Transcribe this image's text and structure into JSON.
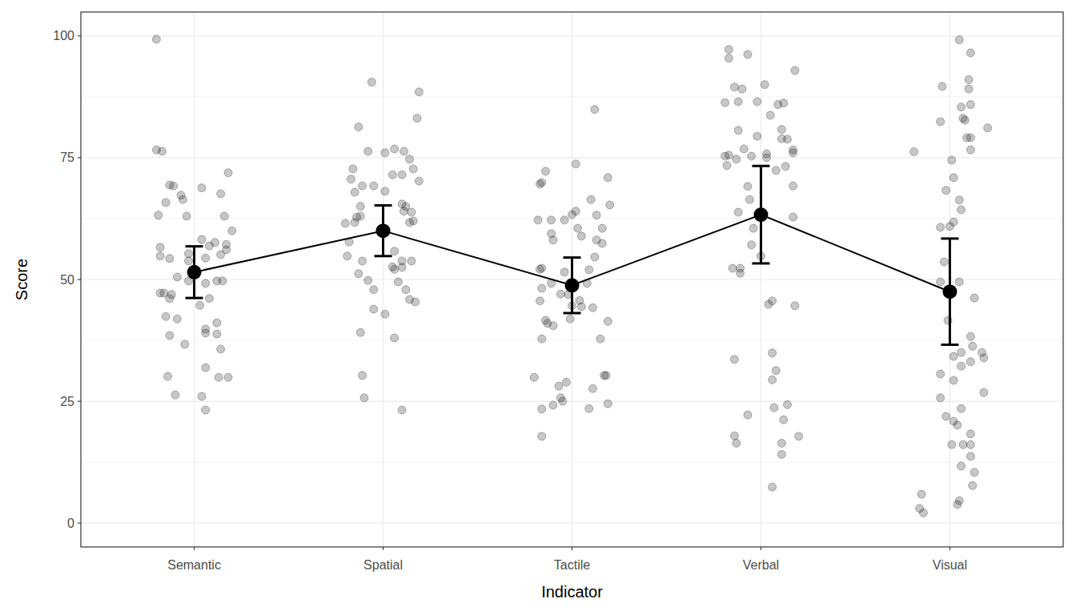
{
  "chart_data": {
    "type": "scatter",
    "x_label": "Indicator",
    "y_label": "Score",
    "categories": [
      "Semantic",
      "Spatial",
      "Tactile",
      "Verbal",
      "Visual"
    ],
    "xlim": [
      0.4,
      5.6
    ],
    "ylim": [
      -4.9,
      104.9
    ],
    "yticks": [
      0,
      25,
      50,
      75,
      100
    ],
    "grid": true,
    "points": [
      {
        "x": [
          0.8,
          0.8,
          0.83,
          0.87,
          0.89,
          0.85,
          0.93,
          0.94,
          1.04,
          0.81,
          0.96,
          1.18,
          1.14,
          1.16,
          0.82,
          0.82,
          0.87,
          0.97,
          0.97,
          1.04,
          1.08,
          1.11,
          1.17,
          1.17,
          1.2,
          1.14,
          1.06,
          0.82,
          0.84,
          0.88,
          0.87,
          0.91,
          0.97,
          1.06,
          1.12,
          1.15,
          1.08,
          1.03,
          0.85,
          0.91,
          1.12,
          0.87,
          0.95,
          1.06,
          1.06,
          1.12,
          1.14,
          1.06,
          0.86,
          1.13,
          1.18,
          0.9,
          1.04,
          1.06
        ],
        "values": [
          99.3,
          76.6,
          76.3,
          69.4,
          69.2,
          65.8,
          67.3,
          66.4,
          68.8,
          63.2,
          63.0,
          71.9,
          67.6,
          63.0,
          56.6,
          54.8,
          54.3,
          55.3,
          53.8,
          58.2,
          56.9,
          57.6,
          57.2,
          56.1,
          60.0,
          55.1,
          54.4,
          47.2,
          47.2,
          46.9,
          46.1,
          50.5,
          49.7,
          49.2,
          49.7,
          49.7,
          46.1,
          44.7,
          42.4,
          41.9,
          41.1,
          38.5,
          36.7,
          39.8,
          39.0,
          38.8,
          35.7,
          31.9,
          30.1,
          29.9,
          29.9,
          26.3,
          26.0,
          23.2
        ]
      },
      {
        "x": [
          1.94,
          2.19,
          2.18,
          1.87,
          1.92,
          2.06,
          2.11,
          2.01,
          2.14,
          1.84,
          2.16,
          2.05,
          2.1,
          1.83,
          2.19,
          1.89,
          1.95,
          1.85,
          2.01,
          1.88,
          2.1,
          2.12,
          2.15,
          2.11,
          1.88,
          1.8,
          1.85,
          1.86,
          2.14,
          2.16,
          1.82,
          2.06,
          1.81,
          1.89,
          2.1,
          2.15,
          2.05,
          2.06,
          1.87,
          1.92,
          2.08,
          2.1,
          1.95,
          2.12,
          2.14,
          2.17,
          1.95,
          2.01,
          1.88,
          2.06,
          1.89,
          1.9,
          2.1
        ],
        "values": [
          90.5,
          88.5,
          83.1,
          81.3,
          76.3,
          76.8,
          76.3,
          76.0,
          74.7,
          72.7,
          72.7,
          71.5,
          71.5,
          70.6,
          70.2,
          69.2,
          69.2,
          67.9,
          68.1,
          65.0,
          65.5,
          65.0,
          63.8,
          64.0,
          63.0,
          61.5,
          61.7,
          62.8,
          61.7,
          62.0,
          57.7,
          55.8,
          54.8,
          53.8,
          53.8,
          53.8,
          52.6,
          52.1,
          51.2,
          49.8,
          49.5,
          52.5,
          47.9,
          47.9,
          45.9,
          45.4,
          43.9,
          42.9,
          39.1,
          38.0,
          30.3,
          25.7,
          23.2
        ]
      },
      {
        "x": [
          3.12,
          3.02,
          2.86,
          3.19,
          2.84,
          2.83,
          3.1,
          3.2,
          2.82,
          2.89,
          2.96,
          3.0,
          3.13,
          3.02,
          3.03,
          2.89,
          3.16,
          3.05,
          2.9,
          3.13,
          3.16,
          3.12,
          3.09,
          2.83,
          2.84,
          2.89,
          2.96,
          2.84,
          3.08,
          2.94,
          2.98,
          2.83,
          3.04,
          3.0,
          3.05,
          3.11,
          2.99,
          2.86,
          3.19,
          2.87,
          2.9,
          2.84,
          3.15,
          3.17,
          3.18,
          2.8,
          2.97,
          2.93,
          3.11,
          2.94,
          2.95,
          2.9,
          3.19,
          3.09,
          2.84,
          2.84
        ],
        "values": [
          84.9,
          73.7,
          72.2,
          70.9,
          69.9,
          69.6,
          66.4,
          65.3,
          62.2,
          62.2,
          62.2,
          63.3,
          63.2,
          64.0,
          60.5,
          59.4,
          60.5,
          58.9,
          58.1,
          58.1,
          57.4,
          54.6,
          52.0,
          52.1,
          52.3,
          49.2,
          51.5,
          48.2,
          49.2,
          47.0,
          46.9,
          45.6,
          45.7,
          44.6,
          44.4,
          44.2,
          41.9,
          41.6,
          41.4,
          41.0,
          40.5,
          37.8,
          37.8,
          30.3,
          30.3,
          29.9,
          28.9,
          28.1,
          27.6,
          25.7,
          25.0,
          24.2,
          24.5,
          23.5,
          23.4,
          17.8
        ]
      },
      {
        "x": [
          3.83,
          3.93,
          3.83,
          4.18,
          4.02,
          3.86,
          3.9,
          3.88,
          3.81,
          3.98,
          4.12,
          4.09,
          4.05,
          3.88,
          4.11,
          3.98,
          4.11,
          4.14,
          3.91,
          4.17,
          4.17,
          3.81,
          3.95,
          4.03,
          4.03,
          3.83,
          3.87,
          4.13,
          3.82,
          4.08,
          3.93,
          4.17,
          3.94,
          3.88,
          4.17,
          3.96,
          3.95,
          4.0,
          3.85,
          3.89,
          3.89,
          4.06,
          4.04,
          4.18,
          3.86,
          4.06,
          4.08,
          4.06,
          4.14,
          4.07,
          4.12,
          3.93,
          3.86,
          4.2,
          3.87,
          4.11,
          4.11,
          4.06
        ],
        "values": [
          97.2,
          96.2,
          95.4,
          92.9,
          90.0,
          89.5,
          89.1,
          86.5,
          86.3,
          86.5,
          86.2,
          85.9,
          83.7,
          80.6,
          80.8,
          79.4,
          78.9,
          78.8,
          76.8,
          76.6,
          76.0,
          75.3,
          75.3,
          75.8,
          75.0,
          75.5,
          74.7,
          73.2,
          73.4,
          72.4,
          69.1,
          69.2,
          66.4,
          63.8,
          62.8,
          60.5,
          57.1,
          54.8,
          52.3,
          52.3,
          51.3,
          45.6,
          44.9,
          44.6,
          33.6,
          34.9,
          31.3,
          29.4,
          24.3,
          23.7,
          21.2,
          22.2,
          17.9,
          17.8,
          16.4,
          16.4,
          14.1,
          7.4
        ]
      },
      {
        "x": [
          5.05,
          5.11,
          4.96,
          5.1,
          5.1,
          5.06,
          5.11,
          4.95,
          5.07,
          5.08,
          5.2,
          5.09,
          5.11,
          4.81,
          5.11,
          5.01,
          5.02,
          4.98,
          5.05,
          5.06,
          5.02,
          4.95,
          5.0,
          4.97,
          4.95,
          5.05,
          5.13,
          4.99,
          5.11,
          5.12,
          5.17,
          5.06,
          5.18,
          5.11,
          5.02,
          5.06,
          4.95,
          5.02,
          5.18,
          4.95,
          5.06,
          4.98,
          5.02,
          5.04,
          5.11,
          5.01,
          5.07,
          5.11,
          5.11,
          5.06,
          5.13,
          5.12,
          4.85,
          5.05,
          5.04,
          4.84,
          4.86
        ],
        "values": [
          99.2,
          96.5,
          89.6,
          91.0,
          89.1,
          85.4,
          85.9,
          82.4,
          83.1,
          82.7,
          81.1,
          79.1,
          79.1,
          76.2,
          76.6,
          74.5,
          70.9,
          68.3,
          66.3,
          64.3,
          61.8,
          60.7,
          60.9,
          53.6,
          49.5,
          49.5,
          46.2,
          41.6,
          38.3,
          36.3,
          35.0,
          35.0,
          33.9,
          33.1,
          34.2,
          32.2,
          30.6,
          29.3,
          26.8,
          25.7,
          23.5,
          21.9,
          20.9,
          20.1,
          18.3,
          16.1,
          16.1,
          16.1,
          13.7,
          11.7,
          10.4,
          7.7,
          5.9,
          4.6,
          3.8,
          3.0,
          2.1
        ]
      }
    ],
    "means": {
      "values": [
        51.5,
        60.0,
        48.8,
        63.3,
        47.5
      ],
      "errors": [
        5.3,
        5.2,
        5.7,
        10.0,
        10.9
      ]
    }
  }
}
